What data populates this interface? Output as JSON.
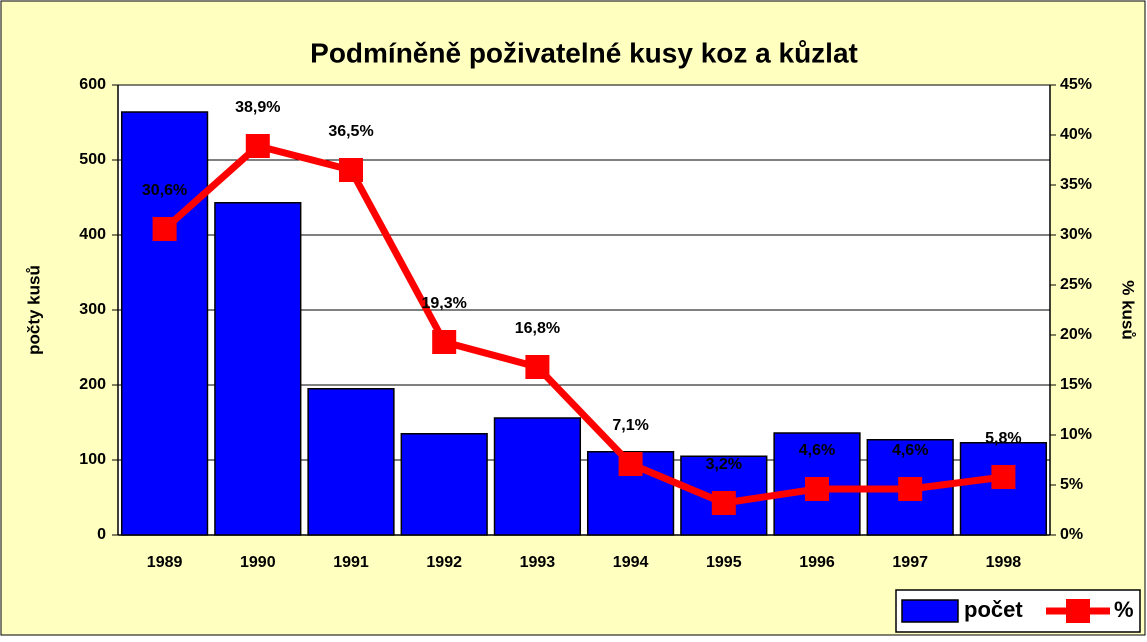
{
  "chart_data": {
    "type": "bar_line",
    "title": "Podmíněně poživatelné kusy koz a kůzlat",
    "ylabel": "počty kusů",
    "y2label": "% kusů",
    "categories": [
      "1989",
      "1990",
      "1991",
      "1992",
      "1993",
      "1994",
      "1995",
      "1996",
      "1997",
      "1998"
    ],
    "series": [
      {
        "name": "počet",
        "type": "bar",
        "color": "#0000ff",
        "values": [
          564,
          443,
          195,
          135,
          156,
          111,
          105,
          136,
          127,
          123
        ]
      },
      {
        "name": "%",
        "type": "line",
        "axis": "y2",
        "color": "#ff0000",
        "values": [
          30.6,
          38.9,
          36.5,
          19.3,
          16.8,
          7.1,
          3.2,
          4.6,
          4.6,
          5.8
        ],
        "value_labels": [
          "30,6%",
          "38,9%",
          "36,5%",
          "19,3%",
          "16,8%",
          "7,1%",
          "3,2%",
          "4,6%",
          "4,6%",
          "5,8%"
        ]
      }
    ],
    "ylim": [
      0,
      600
    ],
    "yticks": [
      0,
      100,
      200,
      300,
      400,
      500,
      600
    ],
    "y2lim": [
      0,
      45
    ],
    "y2ticks": [
      {
        "value": 0,
        "label": "0%"
      },
      {
        "value": 5,
        "label": "5%"
      },
      {
        "value": 10,
        "label": "10%"
      },
      {
        "value": 15,
        "label": "15%"
      },
      {
        "value": 20,
        "label": "20%"
      },
      {
        "value": 25,
        "label": "25%"
      },
      {
        "value": 30,
        "label": "30%"
      },
      {
        "value": 35,
        "label": "35%"
      },
      {
        "value": 40,
        "label": "40%"
      },
      {
        "value": 45,
        "label": "45%"
      }
    ],
    "grid": true,
    "legend": "bottom-right"
  }
}
